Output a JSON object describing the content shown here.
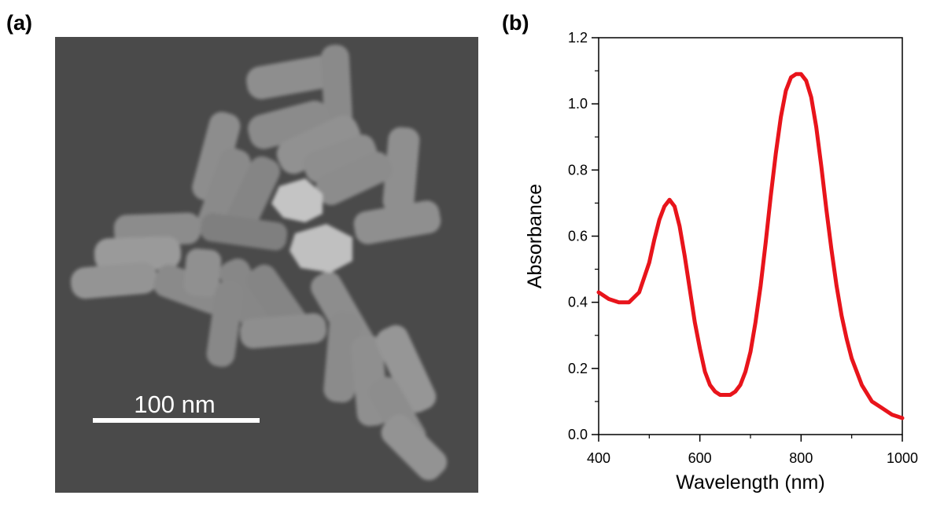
{
  "panels": {
    "a_label": "(a)",
    "b_label": "(b)"
  },
  "sem_image": {
    "scale_bar_label": "100 nm",
    "background_color": "#4a4a4a",
    "particle_color": "#8e8e8e"
  },
  "chart_data": {
    "type": "line",
    "title": "",
    "xlabel": "Wavelength (nm)",
    "ylabel": "Absorbance",
    "xlim": [
      400,
      1000
    ],
    "ylim": [
      0.0,
      1.2
    ],
    "xticks": [
      400,
      600,
      800,
      1000
    ],
    "xtick_labels": [
      "400",
      "600",
      "800",
      "1000"
    ],
    "yticks": [
      0.0,
      0.2,
      0.4,
      0.6,
      0.8,
      1.0,
      1.2
    ],
    "ytick_labels": [
      "0.0",
      "0.2",
      "0.4",
      "0.6",
      "0.8",
      "1.0",
      "1.2"
    ],
    "grid": false,
    "series": [
      {
        "color": "#e8141b",
        "x": [
          400,
          420,
          440,
          460,
          480,
          500,
          510,
          520,
          530,
          540,
          550,
          560,
          570,
          580,
          590,
          600,
          610,
          620,
          630,
          640,
          650,
          660,
          670,
          680,
          690,
          700,
          710,
          720,
          730,
          740,
          750,
          760,
          770,
          780,
          790,
          800,
          810,
          820,
          830,
          840,
          850,
          860,
          870,
          880,
          890,
          900,
          920,
          940,
          960,
          980,
          1000
        ],
        "y": [
          0.43,
          0.41,
          0.4,
          0.4,
          0.43,
          0.52,
          0.59,
          0.65,
          0.69,
          0.71,
          0.69,
          0.63,
          0.54,
          0.44,
          0.34,
          0.26,
          0.19,
          0.15,
          0.13,
          0.12,
          0.12,
          0.12,
          0.13,
          0.15,
          0.19,
          0.25,
          0.34,
          0.45,
          0.58,
          0.72,
          0.85,
          0.96,
          1.04,
          1.08,
          1.09,
          1.09,
          1.07,
          1.02,
          0.93,
          0.81,
          0.68,
          0.56,
          0.45,
          0.36,
          0.29,
          0.23,
          0.15,
          0.1,
          0.08,
          0.06,
          0.05
        ]
      }
    ]
  }
}
